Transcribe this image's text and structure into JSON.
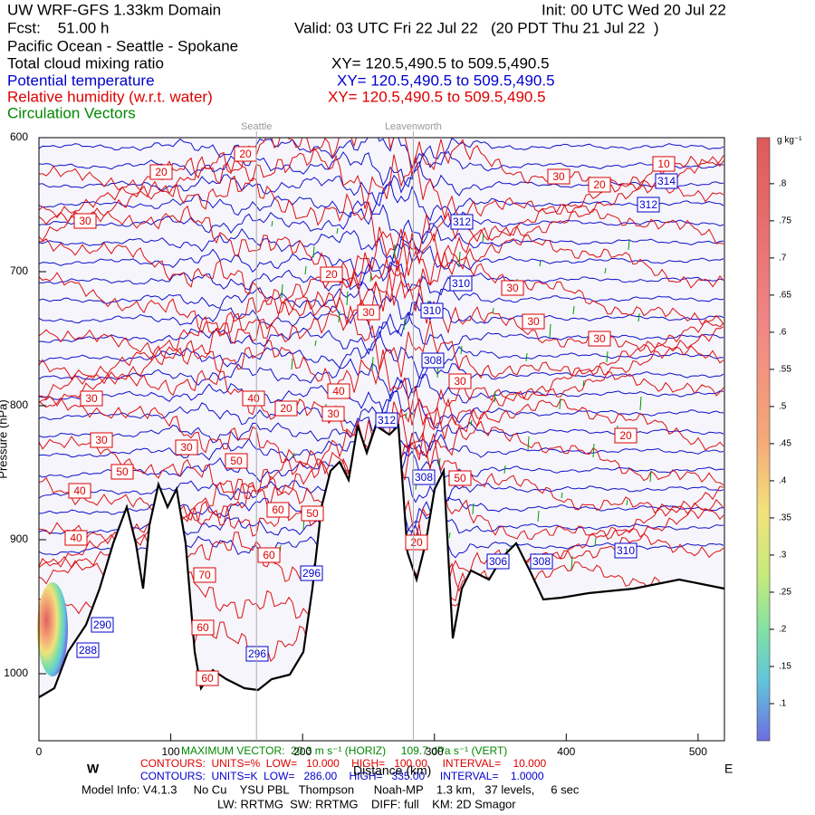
{
  "chart_data": {
    "type": "cross-section",
    "title": "UW WRF-GFS 1.33km Domain",
    "init": "Init: 00 UTC Wed 20 Jul 22",
    "forecast": "Fcst:    51.00 h",
    "valid": "Valid: 03 UTC Fri 22 Jul 22   (20 PDT Thu 21 Jul 22  )",
    "subtitle": "Pacific Ocean - Seattle - Spokane",
    "fields": [
      {
        "name": "Total cloud mixing ratio",
        "color": "#000000",
        "xy": "XY= 120.5,490.5 to 509.5,490.5"
      },
      {
        "name": "Potential temperature",
        "color": "#0000cc",
        "xy": "XY= 120.5,490.5 to 509.5,490.5"
      },
      {
        "name": "Relative humidity (w.r.t. water)",
        "color": "#dd0000",
        "xy": "XY= 120.5,490.5 to 509.5,490.5"
      },
      {
        "name": "Circulation Vectors",
        "color": "#008800"
      }
    ],
    "x_label": "Distance (km)",
    "y_label": "Pressure (hPa)",
    "west": "W",
    "east": "E",
    "xlim": [
      0,
      520
    ],
    "ylim": [
      600,
      1050
    ],
    "xticks": [
      0,
      100,
      200,
      300,
      400,
      500
    ],
    "yticks": [
      600,
      700,
      800,
      900,
      1000
    ],
    "locations": [
      {
        "name": "Seattle",
        "x": 165
      },
      {
        "name": "Leavenworth",
        "x": 284
      }
    ],
    "colorbar": {
      "unit": "g kg⁻¹",
      "lim": [
        0.05,
        0.862
      ],
      "ticks": [
        {
          "value": 0.1,
          "label": ".1"
        },
        {
          "value": 0.15,
          "label": ".15"
        },
        {
          "value": 0.2,
          "label": ".2"
        },
        {
          "value": 0.25,
          "label": ".25"
        },
        {
          "value": 0.3,
          "label": ".3"
        },
        {
          "value": 0.35,
          "label": ".35"
        },
        {
          "value": 0.4,
          "label": ".4"
        },
        {
          "value": 0.45,
          "label": ".45"
        },
        {
          "value": 0.5,
          "label": ".5"
        },
        {
          "value": 0.55,
          "label": ".55"
        },
        {
          "value": 0.6,
          "label": ".6"
        },
        {
          "value": 0.65,
          "label": ".65"
        },
        {
          "value": 0.7,
          "label": ".7"
        },
        {
          "value": 0.75,
          "label": ".75"
        },
        {
          "value": 0.8,
          "label": ".8"
        }
      ]
    },
    "rh_labels": [
      20,
      20,
      30,
      30,
      20,
      10,
      20,
      30,
      30,
      30,
      30,
      30,
      30,
      40,
      20,
      40,
      30,
      20,
      30,
      30,
      50,
      50,
      40,
      60,
      50,
      50,
      40,
      60,
      20,
      70,
      60,
      60
    ],
    "theta_labels": [
      314,
      312,
      312,
      310,
      310,
      308,
      312,
      308,
      306,
      308,
      310,
      296,
      290,
      288,
      296
    ],
    "max_vector": "MAXIMUM VECTOR:  20.3 m s⁻¹ (HORIZ)     109.7 dPa s⁻¹ (VERT)",
    "rh_contours": "CONTOURS:  UNITS=%  LOW=   10.000    HIGH=   100.00     INTERVAL=    10.000",
    "theta_contours": "CONTOURS:  UNITS=K  LOW=   286.00    HIGH=   335.00     INTERVAL=    1.0000",
    "model_info": "Model Info: V4.1.3     No Cu    YSU PBL   Thompson      Noah-MP    1.3 km,   37 levels,     6 sec",
    "physics": "LW: RRTMG  SW: RRTMG    DIFF: full    KM: 2D Smagor"
  }
}
